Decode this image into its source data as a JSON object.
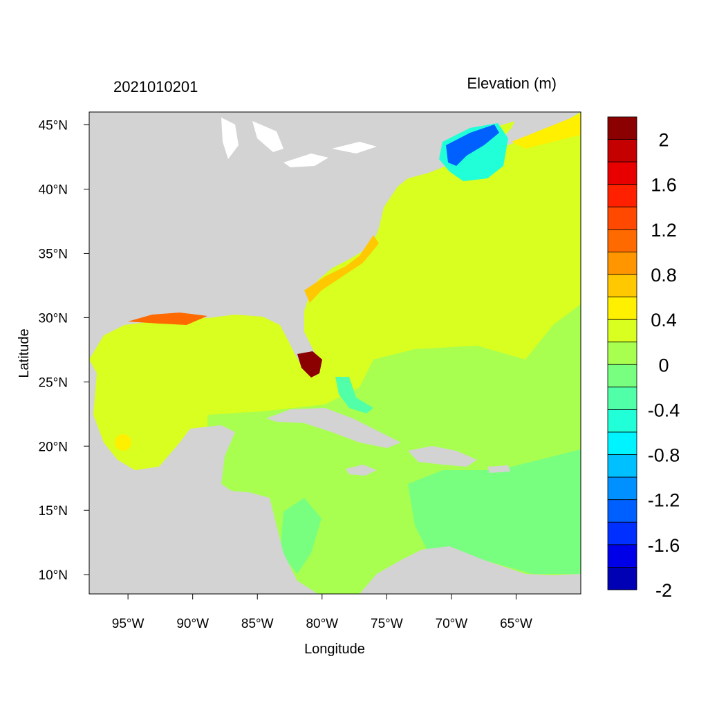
{
  "title_left": "2021010201",
  "title_right": "Elevation (m)",
  "xlabel": "Longitude",
  "ylabel": "Latitude",
  "x_ticks": [
    {
      "value": -95,
      "label": "95°W"
    },
    {
      "value": -90,
      "label": "90°W"
    },
    {
      "value": -85,
      "label": "85°W"
    },
    {
      "value": -80,
      "label": "80°W"
    },
    {
      "value": -75,
      "label": "75°W"
    },
    {
      "value": -70,
      "label": "70°W"
    },
    {
      "value": -65,
      "label": "65°W"
    }
  ],
  "y_ticks": [
    {
      "value": 45,
      "label": "45°N"
    },
    {
      "value": 40,
      "label": "40°N"
    },
    {
      "value": 35,
      "label": "35°N"
    },
    {
      "value": 30,
      "label": "30°N"
    },
    {
      "value": 25,
      "label": "25°N"
    },
    {
      "value": 20,
      "label": "20°N"
    },
    {
      "value": 15,
      "label": "15°N"
    },
    {
      "value": 10,
      "label": "10°N"
    }
  ],
  "lon_range": [
    -98,
    -60
  ],
  "lat_range": [
    8.5,
    46
  ],
  "colorbar": {
    "colors": [
      "#8b0000",
      "#c40000",
      "#e80000",
      "#ff2000",
      "#ff4800",
      "#ff6a00",
      "#ff9600",
      "#ffc800",
      "#fff000",
      "#d8ff20",
      "#a8ff50",
      "#78ff80",
      "#50ffa8",
      "#20ffd8",
      "#00f4ff",
      "#00c0ff",
      "#0090ff",
      "#0060ff",
      "#0030ff",
      "#0000e8",
      "#0000b4"
    ],
    "labels": [
      "2",
      "1.6",
      "1.2",
      "0.8",
      "0.4",
      "0",
      "-0.4",
      "-0.8",
      "-1.2",
      "-1.6",
      "-2"
    ]
  },
  "colors": {
    "land": "#d3d3d3",
    "ocean_base": "#d8ff20",
    "caribbean": "#a8ff50",
    "low_sea": "#78ff80",
    "high_coast": "#8b0000",
    "neg_gulf_maine": "#0060ff"
  }
}
